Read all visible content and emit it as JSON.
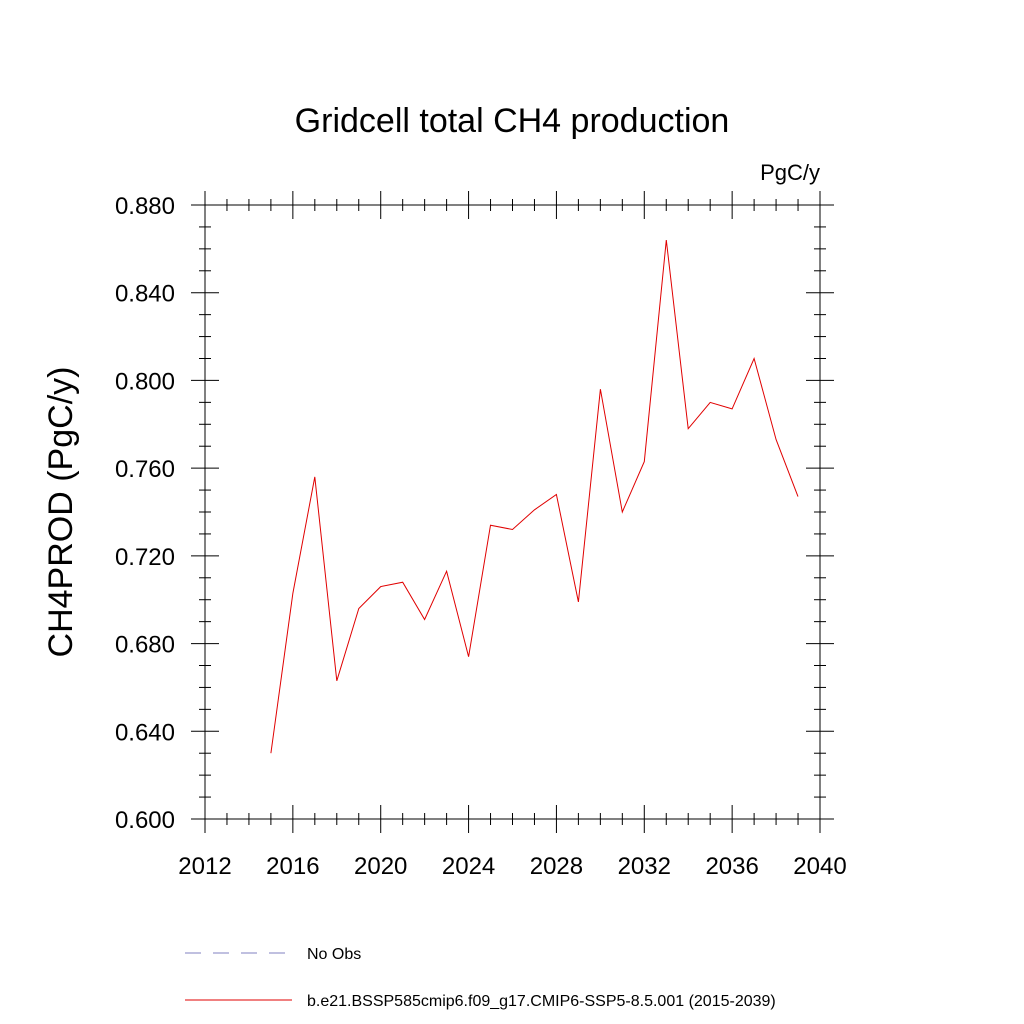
{
  "chart_data": {
    "type": "line",
    "title": "Gridcell total CH4 production",
    "units_label": "PgC/y",
    "ylabel": "CH4PROD  (PgC/y)",
    "xlabel": "",
    "xlim": [
      2012,
      2040
    ],
    "ylim": [
      0.6,
      0.88
    ],
    "x_ticks": [
      2012,
      2016,
      2020,
      2024,
      2028,
      2032,
      2036,
      2040
    ],
    "y_ticks": [
      0.6,
      0.64,
      0.68,
      0.72,
      0.76,
      0.8,
      0.84,
      0.88
    ],
    "x_tick_labels": [
      "2012",
      "2016",
      "2020",
      "2024",
      "2028",
      "2032",
      "2036",
      "2040"
    ],
    "y_tick_labels": [
      "0.600",
      "0.640",
      "0.680",
      "0.720",
      "0.760",
      "0.800",
      "0.840",
      "0.880"
    ],
    "grid": false,
    "legend_position": "bottom",
    "legend": [
      {
        "label": "No Obs",
        "style": "dashed",
        "color": "#8080c0"
      },
      {
        "label": "b.e21.BSSP585cmip6.f09_g17.CMIP6-SSP5-8.5.001 (2015-2039)",
        "style": "solid",
        "color": "#e00000"
      }
    ],
    "series": [
      {
        "color": "#e00000",
        "x": [
          2015,
          2016,
          2017,
          2018,
          2019,
          2020,
          2021,
          2022,
          2023,
          2024,
          2025,
          2026,
          2027,
          2028,
          2029,
          2030,
          2031,
          2032,
          2033,
          2034,
          2035,
          2036,
          2037,
          2038,
          2039
        ],
        "values": [
          0.63,
          0.703,
          0.756,
          0.663,
          0.696,
          0.706,
          0.708,
          0.691,
          0.713,
          0.674,
          0.734,
          0.732,
          0.741,
          0.748,
          0.699,
          0.796,
          0.74,
          0.763,
          0.864,
          0.778,
          0.79,
          0.787,
          0.81,
          0.773,
          0.747
        ]
      }
    ]
  }
}
